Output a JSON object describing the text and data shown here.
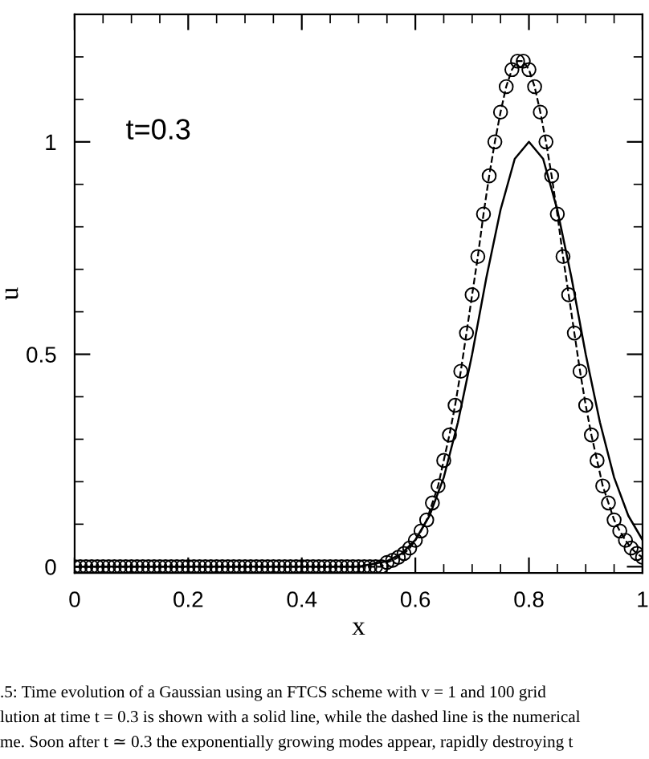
{
  "chart_data": {
    "type": "line",
    "xlabel": "x",
    "ylabel": "u",
    "xlim": [
      0,
      1
    ],
    "ylim": [
      -0.015,
      1.3
    ],
    "xticks": [
      0,
      0.2,
      0.4,
      0.6,
      0.8,
      1
    ],
    "yticks": [
      0,
      0.5,
      1
    ],
    "series": [
      {
        "color": "#000000",
        "line_style": "solid",
        "marker": "none",
        "x": [
          0,
          0.5,
          0.55,
          0.575,
          0.6,
          0.625,
          0.65,
          0.675,
          0.7,
          0.725,
          0.75,
          0.775,
          0.8,
          0.825,
          0.85,
          0.875,
          0.9,
          0.925,
          0.95,
          0.975,
          1.0
        ],
        "values": [
          0,
          0,
          0.013,
          0.03,
          0.063,
          0.12,
          0.21,
          0.34,
          0.5,
          0.68,
          0.84,
          0.96,
          1,
          0.96,
          0.84,
          0.68,
          0.5,
          0.34,
          0.21,
          0.12,
          0.063
        ]
      },
      {
        "color": "#000000",
        "line_style": "dashed",
        "marker": "circle",
        "x": [
          0,
          0.01,
          0.02,
          0.03,
          0.04,
          0.05,
          0.06,
          0.07,
          0.08,
          0.09,
          0.1,
          0.11,
          0.12,
          0.13,
          0.14,
          0.15,
          0.16,
          0.17,
          0.18,
          0.19,
          0.2,
          0.21,
          0.22,
          0.23,
          0.24,
          0.25,
          0.26,
          0.27,
          0.28,
          0.29,
          0.3,
          0.31,
          0.32,
          0.33,
          0.34,
          0.35,
          0.36,
          0.37,
          0.38,
          0.39,
          0.4,
          0.41,
          0.42,
          0.43,
          0.44,
          0.45,
          0.46,
          0.47,
          0.48,
          0.49,
          0.5,
          0.51,
          0.52,
          0.53,
          0.54,
          0.55,
          0.56,
          0.57,
          0.58,
          0.59,
          0.6,
          0.61,
          0.62,
          0.63,
          0.64,
          0.65,
          0.66,
          0.67,
          0.68,
          0.69,
          0.7,
          0.71,
          0.72,
          0.73,
          0.74,
          0.75,
          0.76,
          0.77,
          0.78,
          0.79,
          0.8,
          0.81,
          0.82,
          0.83,
          0.84,
          0.85,
          0.86,
          0.87,
          0.88,
          0.89,
          0.9,
          0.91,
          0.92,
          0.93,
          0.94,
          0.95,
          0.96,
          0.97,
          0.98,
          0.99,
          1.0
        ],
        "values": [
          0,
          0,
          0,
          0,
          0,
          0,
          0,
          0,
          0,
          0,
          0,
          0,
          0,
          0,
          0,
          0,
          0,
          0,
          0,
          0,
          0,
          0,
          0,
          0,
          0,
          0,
          0,
          0,
          0,
          0,
          0,
          0,
          0,
          0,
          0,
          0,
          0,
          0,
          0,
          0,
          0,
          0,
          0,
          0,
          0,
          0,
          0,
          0,
          0,
          0,
          0,
          0,
          0,
          0,
          0,
          0.01,
          0.015,
          0.022,
          0.031,
          0.044,
          0.062,
          0.084,
          0.11,
          0.15,
          0.19,
          0.25,
          0.31,
          0.38,
          0.46,
          0.55,
          0.64,
          0.73,
          0.83,
          0.92,
          1.0,
          1.07,
          1.13,
          1.17,
          1.19,
          1.19,
          1.17,
          1.13,
          1.07,
          1.0,
          0.92,
          0.83,
          0.73,
          0.64,
          0.55,
          0.46,
          0.38,
          0.31,
          0.25,
          0.19,
          0.15,
          0.11,
          0.084,
          0.062,
          0.044,
          0.031,
          0.022
        ]
      }
    ],
    "annotations": [
      "t=0.3",
      ".5: Time evolution of a Gaussian using an FTCS scheme with v = 1 and 100 grid",
      "lution at time t = 0.3 is shown with a solid line, while the dashed line is the numerical",
      "me. Soon after t ≃ 0.3 the exponentially growing modes appear, rapidly destroying t"
    ]
  }
}
